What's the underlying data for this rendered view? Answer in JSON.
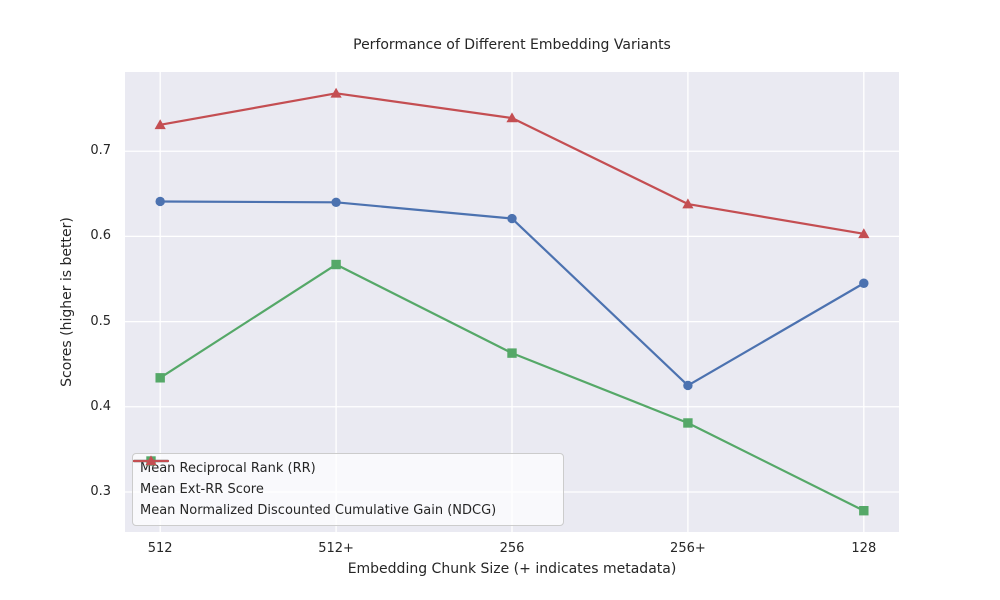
{
  "figure": {
    "background": "#FFFFFF"
  },
  "chart_data": {
    "type": "line",
    "title": "Performance of Different Embedding Variants",
    "xlabel": "Embedding Chunk Size (+ indicates metadata)",
    "ylabel": "Scores (higher is better)",
    "categories": [
      "512",
      "512+",
      "256",
      "256+",
      "128"
    ],
    "x_margin": 0.2,
    "yticks": [
      "0.3",
      "0.4",
      "0.5",
      "0.6",
      "0.7"
    ],
    "ytick_values": [
      0.3,
      0.4,
      0.5,
      0.6,
      0.7
    ],
    "ylim": [
      0.253,
      0.793
    ],
    "grid": true,
    "legend_position": "lower-left",
    "plot_bg_color": "#EAEAF2",
    "grid_color": "#FFFFFF",
    "text_color": "#262626",
    "series": [
      {
        "name": "Mean Reciprocal Rank (RR)",
        "color": "#4C72B0",
        "marker": "circle",
        "values": [
          0.641,
          0.64,
          0.621,
          0.425,
          0.545
        ]
      },
      {
        "name": "Mean Ext-RR Score",
        "color": "#55A868",
        "marker": "square",
        "values": [
          0.434,
          0.567,
          0.463,
          0.381,
          0.278
        ]
      },
      {
        "name": "Mean Normalized Discounted Cumulative Gain (NDCG)",
        "color": "#C44E52",
        "marker": "triangle-up",
        "values": [
          0.731,
          0.768,
          0.739,
          0.638,
          0.603
        ]
      }
    ]
  }
}
